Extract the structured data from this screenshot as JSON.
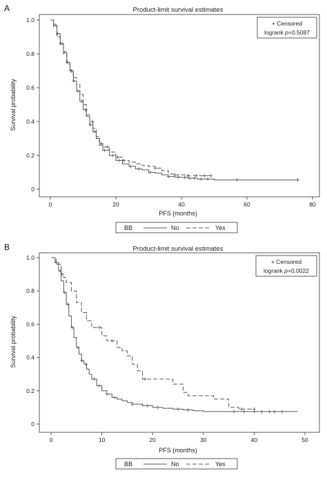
{
  "chart_data": [
    {
      "type": "line",
      "panel_label": "A",
      "title": "Product-limit survival estimates",
      "xlabel": "PFS (months)",
      "ylabel": "Survival probability",
      "xlim": [
        0,
        80
      ],
      "ylim": [
        0,
        1
      ],
      "xticks": [
        "0",
        "20",
        "40",
        "60",
        "80"
      ],
      "yticks": [
        "0",
        "0.2",
        "0.4",
        "0.6",
        "0.8",
        "1.0"
      ],
      "annotation": {
        "line1": "+ Censored",
        "line2_prefix": "logrank ",
        "line2_p": "p",
        "line2_value": "=0.5087"
      },
      "legend": {
        "title": "BB",
        "entries": [
          "No",
          "Yes"
        ]
      },
      "series": [
        {
          "name": "No",
          "x": [
            0,
            1,
            2,
            3,
            4,
            5,
            6,
            7,
            8,
            9,
            10,
            11,
            12,
            13,
            14,
            15,
            16,
            18,
            20,
            22,
            24,
            26,
            28,
            30,
            32,
            34,
            36,
            38,
            40,
            42,
            45,
            50,
            60,
            70,
            75.5
          ],
          "y": [
            1.0,
            0.97,
            0.92,
            0.86,
            0.81,
            0.75,
            0.7,
            0.64,
            0.58,
            0.52,
            0.47,
            0.43,
            0.38,
            0.34,
            0.3,
            0.26,
            0.23,
            0.2,
            0.17,
            0.15,
            0.135,
            0.12,
            0.115,
            0.1,
            0.095,
            0.085,
            0.075,
            0.072,
            0.07,
            0.065,
            0.06,
            0.055,
            0.055,
            0.055,
            0.055
          ],
          "censored_x": [
            1.5,
            2.2,
            3.1,
            3.6,
            4.4,
            5.2,
            6.3,
            7.1,
            8.4,
            9.6,
            10.8,
            12.2,
            13.5,
            16.5,
            19,
            21,
            24.5,
            27,
            30.5,
            36,
            39,
            41,
            42.5,
            44,
            46,
            48,
            57,
            75.5
          ]
        },
        {
          "name": "Yes",
          "x": [
            0,
            1,
            2,
            3,
            4,
            5,
            6,
            7,
            8,
            9,
            10,
            11,
            12,
            13,
            14,
            15,
            16,
            18,
            20,
            22,
            24,
            26,
            28,
            30,
            32,
            34,
            36,
            38,
            40,
            42,
            45,
            49
          ],
          "y": [
            1.0,
            0.96,
            0.9,
            0.86,
            0.8,
            0.74,
            0.7,
            0.66,
            0.62,
            0.56,
            0.5,
            0.44,
            0.4,
            0.36,
            0.31,
            0.27,
            0.25,
            0.22,
            0.19,
            0.17,
            0.16,
            0.15,
            0.14,
            0.135,
            0.125,
            0.11,
            0.09,
            0.085,
            0.085,
            0.08,
            0.08,
            0.08
          ],
          "censored_x": [
            6.5,
            12.8,
            15.5,
            17.5,
            20.5,
            22.5,
            32,
            38,
            42,
            44.5,
            47,
            49
          ]
        }
      ]
    },
    {
      "type": "line",
      "panel_label": "B",
      "title": "Product-limit survival estimates",
      "xlabel": "PFS (months)",
      "ylabel": "Survival probability",
      "xlim": [
        0,
        50
      ],
      "ylim": [
        0,
        1
      ],
      "xticks": [
        "0",
        "10",
        "20",
        "30",
        "40",
        "50"
      ],
      "yticks": [
        "0",
        "0.2",
        "0.4",
        "0.6",
        "0.8",
        "1.0"
      ],
      "annotation": {
        "line1": "+ Censored",
        "line2_prefix": "logrank ",
        "line2_p": "p",
        "line2_value": "=0.0022"
      },
      "legend": {
        "title": "BB",
        "entries": [
          "No",
          "Yes"
        ]
      },
      "series": [
        {
          "name": "No",
          "x": [
            0,
            0.8,
            1.5,
            2,
            2.5,
            3,
            3.5,
            4,
            4.5,
            5,
            5.5,
            6,
            6.5,
            7,
            7.5,
            8,
            9,
            10,
            11,
            12,
            13,
            14,
            15,
            16,
            18,
            20,
            22,
            24,
            26,
            28,
            30,
            35,
            40,
            45,
            48.5
          ],
          "y": [
            1.0,
            0.97,
            0.92,
            0.86,
            0.79,
            0.72,
            0.65,
            0.58,
            0.52,
            0.46,
            0.42,
            0.38,
            0.36,
            0.33,
            0.3,
            0.27,
            0.23,
            0.2,
            0.18,
            0.16,
            0.15,
            0.14,
            0.13,
            0.12,
            0.11,
            0.1,
            0.095,
            0.09,
            0.085,
            0.08,
            0.075,
            0.075,
            0.075,
            0.075,
            0.075
          ],
          "censored_x": [
            1,
            1.8,
            2.7,
            3.3,
            4.2,
            5.3,
            6.1,
            6.9,
            8.5,
            9.5,
            11,
            12.5,
            16,
            19,
            21,
            25,
            27,
            36,
            38,
            40,
            41.5,
            43,
            44,
            45.5
          ]
        },
        {
          "name": "Yes",
          "x": [
            0,
            1,
            2,
            2.5,
            3,
            4,
            5,
            6,
            7,
            8,
            9,
            10,
            11,
            12,
            13,
            14,
            15,
            16,
            17,
            18,
            20,
            22,
            24,
            26,
            27,
            30,
            32,
            35,
            37,
            40
          ],
          "y": [
            1.0,
            0.96,
            0.9,
            0.88,
            0.85,
            0.8,
            0.73,
            0.67,
            0.62,
            0.58,
            0.58,
            0.53,
            0.5,
            0.5,
            0.46,
            0.44,
            0.41,
            0.36,
            0.32,
            0.27,
            0.27,
            0.27,
            0.24,
            0.19,
            0.17,
            0.17,
            0.15,
            0.1,
            0.09,
            0.09
          ],
          "censored_x": [
            2.2,
            9.5,
            12,
            18.5,
            37.5,
            40
          ]
        }
      ]
    }
  ]
}
